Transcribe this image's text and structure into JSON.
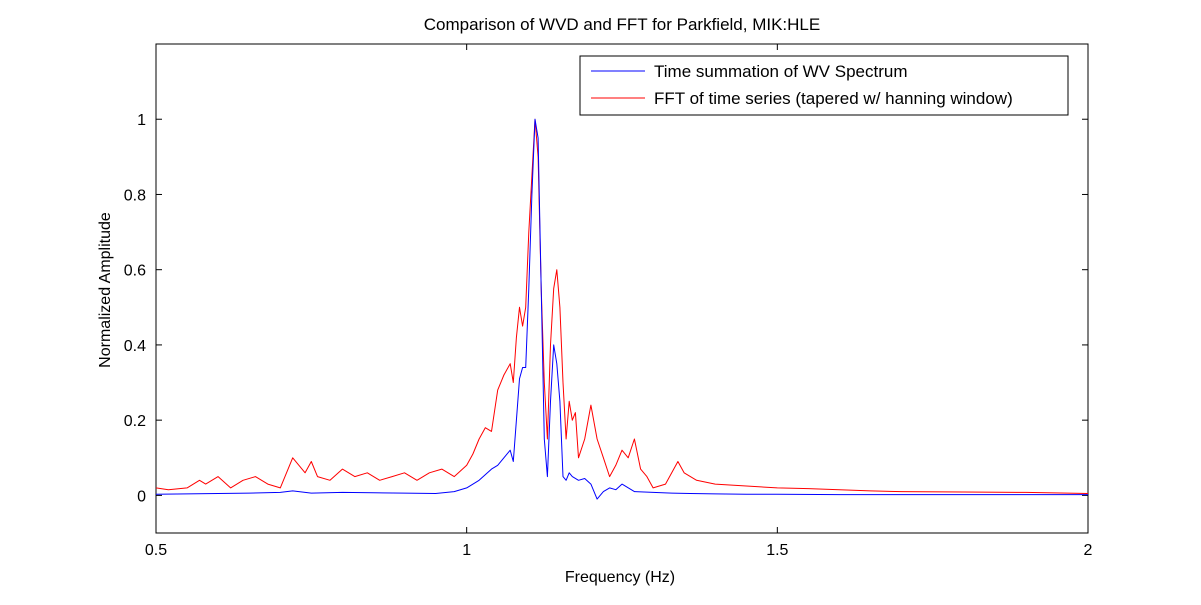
{
  "chart_data": {
    "type": "line",
    "title": "Comparison of WVD and FFT for Parkfield, MIK:HLE",
    "xlabel": "Frequency (Hz)",
    "ylabel": "Normalized Amplitude",
    "xlim": [
      0.5,
      2.0
    ],
    "ylim": [
      -0.1,
      1.2
    ],
    "xticks": [
      0.5,
      1.0,
      1.5,
      2.0
    ],
    "xtick_labels": [
      "0.5",
      "1",
      "1.5",
      "2"
    ],
    "yticks": [
      0,
      0.2,
      0.4,
      0.6,
      0.8,
      1.0
    ],
    "ytick_labels": [
      "0",
      "0.2",
      "0.4",
      "0.6",
      "0.8",
      "1"
    ],
    "grid": false,
    "legend_position": "top-right",
    "series": [
      {
        "name": "Time summation of WV Spectrum",
        "color": "#0000ff",
        "x": [
          0.5,
          0.55,
          0.6,
          0.65,
          0.7,
          0.72,
          0.75,
          0.8,
          0.85,
          0.9,
          0.95,
          0.98,
          1.0,
          1.02,
          1.04,
          1.05,
          1.06,
          1.07,
          1.075,
          1.08,
          1.085,
          1.09,
          1.095,
          1.1,
          1.105,
          1.11,
          1.115,
          1.12,
          1.125,
          1.13,
          1.135,
          1.14,
          1.145,
          1.15,
          1.155,
          1.16,
          1.165,
          1.17,
          1.18,
          1.19,
          1.2,
          1.21,
          1.22,
          1.23,
          1.24,
          1.25,
          1.27,
          1.3,
          1.33,
          1.36,
          1.4,
          1.45,
          1.5,
          1.6,
          1.7,
          1.8,
          1.9,
          2.0
        ],
        "y": [
          0.003,
          0.004,
          0.005,
          0.006,
          0.008,
          0.012,
          0.006,
          0.008,
          0.007,
          0.006,
          0.005,
          0.01,
          0.02,
          0.04,
          0.07,
          0.08,
          0.1,
          0.12,
          0.09,
          0.2,
          0.31,
          0.34,
          0.34,
          0.55,
          0.8,
          1.0,
          0.95,
          0.55,
          0.15,
          0.05,
          0.25,
          0.4,
          0.35,
          0.25,
          0.05,
          0.04,
          0.06,
          0.05,
          0.04,
          0.045,
          0.03,
          -0.01,
          0.01,
          0.02,
          0.015,
          0.03,
          0.01,
          0.008,
          0.006,
          0.005,
          0.004,
          0.003,
          0.003,
          0.002,
          0.002,
          0.002,
          0.002,
          0.002
        ]
      },
      {
        "name": "FFT of time series (tapered w/ hanning window)",
        "color": "#ff0000",
        "x": [
          0.5,
          0.52,
          0.55,
          0.57,
          0.58,
          0.6,
          0.62,
          0.64,
          0.66,
          0.68,
          0.7,
          0.72,
          0.73,
          0.74,
          0.75,
          0.76,
          0.78,
          0.8,
          0.82,
          0.84,
          0.86,
          0.88,
          0.9,
          0.92,
          0.94,
          0.96,
          0.98,
          1.0,
          1.01,
          1.02,
          1.03,
          1.04,
          1.05,
          1.06,
          1.07,
          1.075,
          1.08,
          1.085,
          1.09,
          1.095,
          1.1,
          1.105,
          1.11,
          1.115,
          1.12,
          1.125,
          1.13,
          1.135,
          1.14,
          1.145,
          1.15,
          1.155,
          1.16,
          1.165,
          1.17,
          1.175,
          1.18,
          1.19,
          1.2,
          1.21,
          1.22,
          1.23,
          1.24,
          1.25,
          1.26,
          1.27,
          1.28,
          1.29,
          1.3,
          1.32,
          1.34,
          1.35,
          1.37,
          1.4,
          1.45,
          1.5,
          1.55,
          1.6,
          1.65,
          1.7,
          1.8,
          1.9,
          2.0
        ],
        "y": [
          0.02,
          0.015,
          0.02,
          0.04,
          0.03,
          0.05,
          0.02,
          0.04,
          0.05,
          0.03,
          0.02,
          0.1,
          0.08,
          0.06,
          0.09,
          0.05,
          0.04,
          0.07,
          0.05,
          0.06,
          0.04,
          0.05,
          0.06,
          0.04,
          0.06,
          0.07,
          0.05,
          0.08,
          0.11,
          0.15,
          0.18,
          0.17,
          0.28,
          0.32,
          0.35,
          0.3,
          0.42,
          0.5,
          0.45,
          0.5,
          0.7,
          0.85,
          1.0,
          0.9,
          0.55,
          0.3,
          0.15,
          0.4,
          0.55,
          0.6,
          0.5,
          0.3,
          0.15,
          0.25,
          0.2,
          0.22,
          0.1,
          0.15,
          0.24,
          0.15,
          0.1,
          0.05,
          0.08,
          0.12,
          0.1,
          0.15,
          0.07,
          0.05,
          0.02,
          0.03,
          0.09,
          0.06,
          0.04,
          0.03,
          0.025,
          0.02,
          0.018,
          0.015,
          0.012,
          0.01,
          0.009,
          0.008,
          0.005
        ]
      }
    ]
  }
}
